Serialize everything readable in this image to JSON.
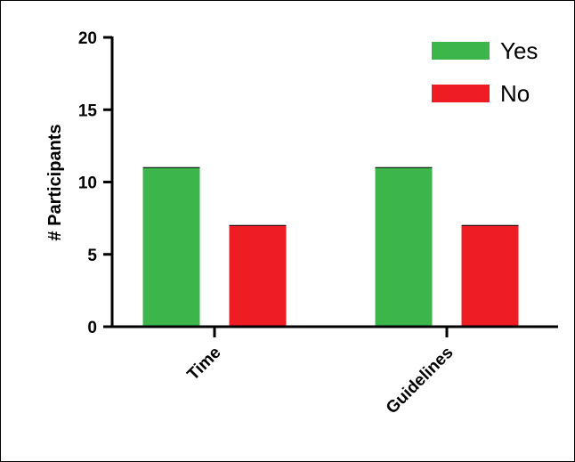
{
  "chart_data": {
    "type": "bar",
    "title": "",
    "xlabel": "",
    "ylabel": "# Participants",
    "categories": [
      "Time",
      "Guidelines"
    ],
    "series": [
      {
        "name": "Yes",
        "values": [
          11,
          11
        ],
        "color": "#3cb54a"
      },
      {
        "name": "No",
        "values": [
          7,
          7
        ],
        "color": "#ee1d24"
      }
    ],
    "ylim": [
      0,
      20
    ],
    "yticks": [
      0,
      5,
      10,
      15,
      20
    ],
    "grid": false,
    "legend_position": "top-right"
  }
}
